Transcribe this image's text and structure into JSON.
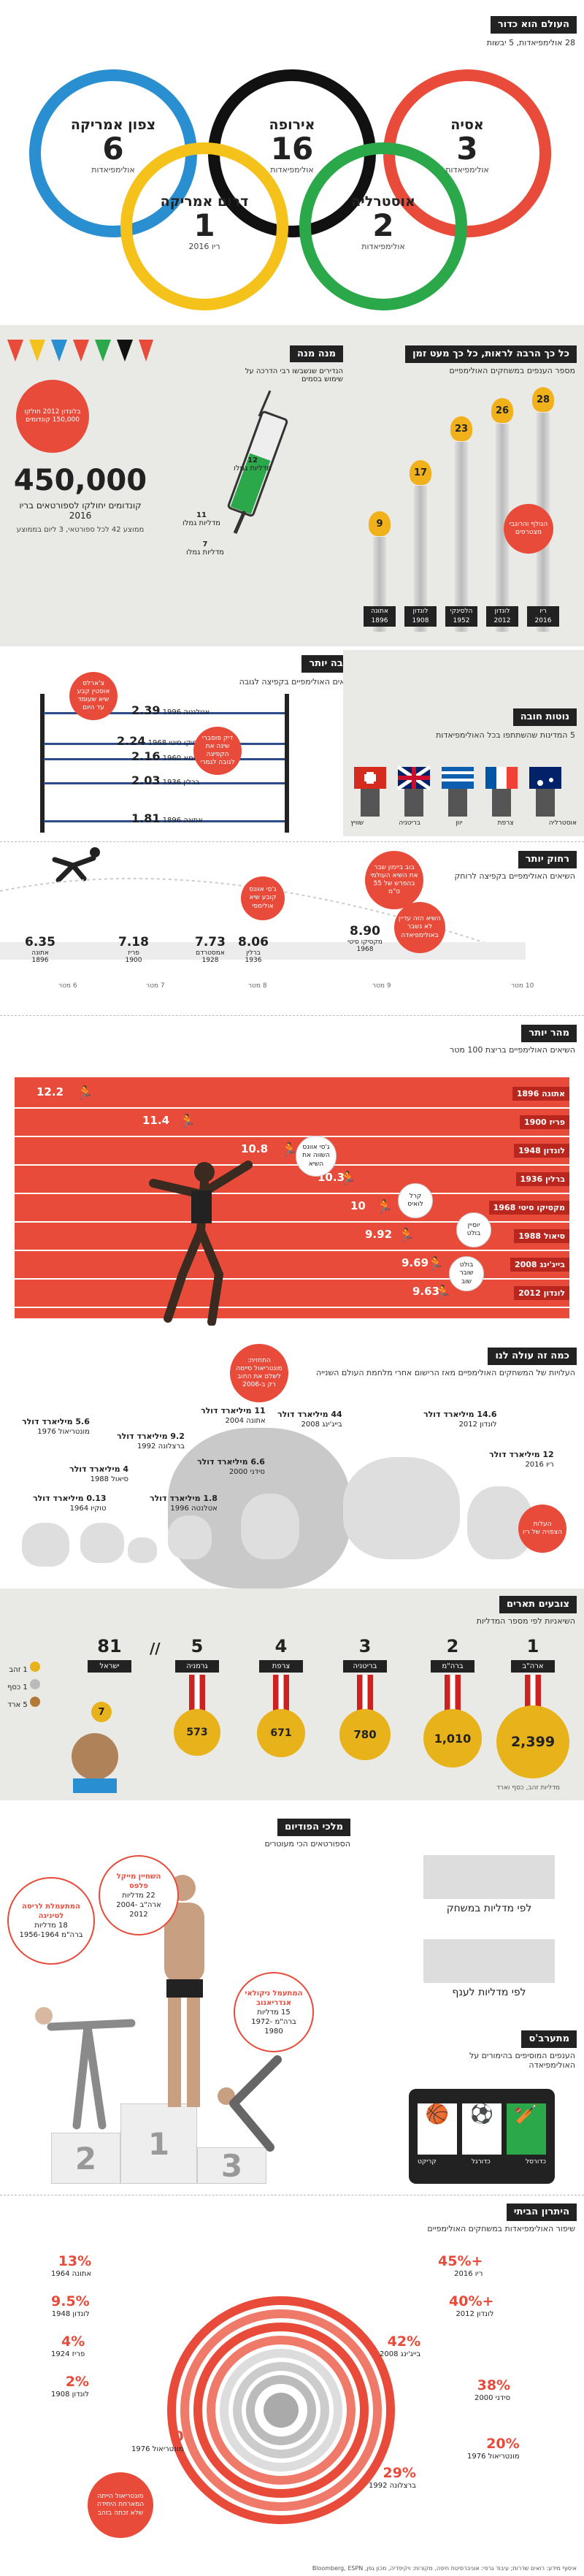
{
  "sec1": {
    "title": "העולם הוא כדור",
    "subtitle": "28 אולימפיאדות, 5 יבשות",
    "rings": [
      {
        "name": "צפון אמריקה",
        "num": "6",
        "unit": "אולימפיאדות",
        "note": "",
        "color": "#2a8fd0"
      },
      {
        "name": "אירופה",
        "num": "16",
        "unit": "אולימפיאדות",
        "note": "",
        "color": "#111111"
      },
      {
        "name": "אסיה",
        "num": "3",
        "unit": "אולימפיאדות",
        "note": "",
        "color": "#e84b3a"
      },
      {
        "name": "דרום אמריקה",
        "num": "1",
        "unit": "",
        "note": "ריו 2016",
        "color": "#f4c21a"
      },
      {
        "name": "אוסטרליה",
        "num": "2",
        "unit": "אולימפיאדות",
        "note": "",
        "color": "#2aa84a"
      }
    ]
  },
  "sec2": {
    "title": "כל כך הרבה לראות, כל כך מעט זמן",
    "subtitle": "מספר הענפים במשחקים האולימפיים",
    "torches": [
      {
        "value": "9",
        "city": "אתונה",
        "year": "1896"
      },
      {
        "value": "17",
        "city": "לונדון",
        "year": "1908"
      },
      {
        "value": "23",
        "city": "הלסינקי",
        "year": "1952"
      },
      {
        "value": "26",
        "city": "לונדון",
        "year": "2012"
      },
      {
        "value": "28",
        "city": "ריו",
        "year": "2016"
      }
    ],
    "bubble": "הגולף והרוגבי מצטרפים",
    "dose_title": "מנה מנה",
    "dose_sub": "הנדירים שנשבשו רבי הדרכה על שימוש בסמים",
    "dose_vals": [
      {
        "v": "12",
        "label": "מדליות גמלו"
      },
      {
        "v": "11",
        "label": "מדליות גמלו"
      },
      {
        "v": "7",
        "label": "מדליות גמלו"
      }
    ],
    "condoms_num": "450,000",
    "condoms_label": "קונדומים יחולקו לספורטאים בריו 2016",
    "condoms_note": "ממוצע 42 לכל ספורטאי, 3 ליום בממוצע",
    "condoms_bubble": "בלונדון 2012 חולקו 150,000 קונדומים"
  },
  "sec3": {
    "title": "גובה יותר",
    "subtitle": "השיאים האולימפיים בקפיצה לגובה",
    "bars": [
      {
        "value": "2.39",
        "label": "אטלנטה 1996"
      },
      {
        "value": "2.24",
        "label": "מקסיקו סיטי 1968"
      },
      {
        "value": "2.16",
        "label": "רומא 1960"
      },
      {
        "value": "2.03",
        "label": "ברלין 1936"
      },
      {
        "value": "1.81",
        "label": "אתונה 1896"
      }
    ],
    "bubble1": "צ'ארלס אוסטין קבע שיא שעומד עד היום",
    "bubble2": "דיק פוסברי שינה את הקפיצה לגובה לגמרי"
  },
  "sec4": {
    "title": "נוטות חובה",
    "subtitle": "5 המדינות שהשתתפו בכל האולימפיאדות",
    "countries": [
      "שוויץ",
      "בריטניה",
      "יוון",
      "צרפת",
      "אוסטרליה"
    ]
  },
  "sec5": {
    "title": "רחוק יותר",
    "subtitle": "השיאים האולימפיים בקפיצה לרוחק",
    "marks": [
      {
        "value": "6.35",
        "city": "אתונה",
        "year": "1896"
      },
      {
        "value": "7.18",
        "city": "פריז",
        "year": "1900"
      },
      {
        "value": "7.73",
        "city": "אמסטרדם",
        "year": "1928"
      },
      {
        "value": "8.06",
        "city": "ברלין",
        "year": "1936"
      },
      {
        "value": "8.90",
        "city": "מקסיקו סיטי",
        "year": "1968"
      }
    ],
    "meters": [
      "7 מטר",
      "6 מטר",
      "8 מטר",
      "9 מטר",
      "10 מטר"
    ],
    "bubble1": "ג'סי אוונס קובע שיא אולימפי",
    "bubble2": "בוב ביימון שבר את השיא העולמי בהפרש של 55 ס\"מ",
    "bubble3": "השיא הזה עדיין לא נשבר באולימפיאדה"
  },
  "sec6": {
    "title": "מהר יותר",
    "subtitle": "השיאים האולימפיים בריצת 100 מטר",
    "lanes": [
      {
        "tag": "אתונה 1896",
        "time": "12.2"
      },
      {
        "tag": "פריז 1900",
        "time": "11.4"
      },
      {
        "tag": "לונדון 1948",
        "time": "10.8"
      },
      {
        "tag": "ברלין 1936",
        "time": "10.3"
      },
      {
        "tag": "מקסיקו סיטי 1968",
        "time": "10"
      },
      {
        "tag": "סיאול 1988",
        "time": "9.92"
      },
      {
        "tag": "בייג'ינג 2008",
        "time": "9.69"
      },
      {
        "tag": "לונדון 2012",
        "time": "9.63"
      }
    ],
    "callouts": [
      "ג'סי אוונס השווה את השיא",
      "קרל לואיס",
      "יוסיין בולט",
      "בולט שובר שוב"
    ]
  },
  "sec7": {
    "title": "כמה זה עולה לנו",
    "subtitle": "העלויות של המשחקים האולימפיים מאז הרישום אחרי מלחמת העולם השנייה",
    "costs": [
      {
        "amount": "14.6 מיליארד דולר",
        "place": "לונדון 2012"
      },
      {
        "amount": "44 מיליארד דולר",
        "place": "בייג'ינג 2008"
      },
      {
        "amount": "11 מיליארד דולר",
        "place": "אתונה 2004"
      },
      {
        "amount": "6.6 מיליארד דולר",
        "place": "סידני 2000"
      },
      {
        "amount": "1.8 מיליארד דולר",
        "place": "אטלנטה 1996"
      },
      {
        "amount": "9.2 מיליארד דולר",
        "place": "ברצלונה 1992"
      },
      {
        "amount": "4 מיליארד דולר",
        "place": "סיאול 1988"
      },
      {
        "amount": "5.6 מיליארד דולר",
        "place": "מונטריאול 1976"
      },
      {
        "amount": "0.13 מיליארד דולר",
        "place": "טוקיו 1964"
      },
      {
        "amount": "12 מיליארד דולר",
        "place": "ריו 2016"
      }
    ],
    "bubble1": "התחזית: מונטריאול סיימה לשלם את החוב רק ב-2006",
    "bubble2": "העלות הצפויה של ריו"
  },
  "sec8": {
    "title": "צובעים תארים",
    "subtitle": "השיאניות לפי מספר המדליות",
    "ranks": [
      {
        "rank": "1",
        "country": "ארה\"ב",
        "medals": "2,399"
      },
      {
        "rank": "2",
        "country": "ברה\"מ",
        "medals": "1,010"
      },
      {
        "rank": "3",
        "country": "בריטניה",
        "medals": "780"
      },
      {
        "rank": "4",
        "country": "צרפת",
        "medals": "671"
      },
      {
        "rank": "5",
        "country": "גרמניה",
        "medals": "573"
      },
      {
        "rank": "81",
        "country": "ישראל",
        "medals": "7"
      }
    ],
    "medal_note": "מדליות זהב, כסף וארד",
    "israel": [
      "1 זהב",
      "1 כסף",
      "5 ארד"
    ]
  },
  "sec9": {
    "title": "מלכי הפודיום",
    "subtitle": "הספורטאים הכי מעוטרים",
    "c1": {
      "title": "המתעמלת לריסה לטינינה",
      "detail": "18 מדליות",
      "note": "ברה\"מ 1956-1964"
    },
    "c2": {
      "title": "השחיין מייקל פלפס",
      "detail": "22 מדליות",
      "note": "ארה\"ב 2004-2012"
    },
    "c3": {
      "title": "המתעמל ניקולאי אנדריאנוב",
      "detail": "15 מדליות",
      "note": "ברה\"מ 1972-1980"
    },
    "podium_nums": [
      "2",
      "1",
      "3"
    ],
    "pod_labels": [
      "לפי מדליות במשחק",
      "לפי מדליות לענף"
    ]
  },
  "sec10": {
    "title": "מתערב'ס",
    "subtitle": "הענפים המוסיפים בהימורים על האולימפיאדה",
    "slots": [
      "קריקט",
      "כדורגל",
      "כדורסל"
    ]
  },
  "sec11": {
    "title": "היתרון הביתי",
    "subtitle": "שיפור האולימפיאדות במשחקים האולימפיים",
    "right": [
      {
        "pct": "+45%",
        "city": "ריו",
        "year": "2016"
      },
      {
        "pct": "+40%",
        "city": "לונדון",
        "year": "2012"
      },
      {
        "pct": "42%",
        "city": "בייג'ינג",
        "year": "2008"
      },
      {
        "pct": "38%",
        "city": "סידני",
        "year": "2000"
      },
      {
        "pct": "20%",
        "city": "מונטריאול",
        "year": "1976"
      },
      {
        "pct": "29%",
        "city": "ברצלונה",
        "year": "1992"
      }
    ],
    "left": [
      {
        "pct": "13%",
        "city": "אתונה",
        "year": "1964"
      },
      {
        "pct": "9.5%",
        "city": "לונדון",
        "year": "1948"
      },
      {
        "pct": "4%",
        "city": "פריז",
        "year": "1924"
      },
      {
        "pct": "2%",
        "city": "לונדון",
        "year": "1908"
      },
      {
        "pct": "0",
        "city": "מונטריאול",
        "year": "1976"
      }
    ],
    "bubble": "מונטריאול הייתה המארחת היחידה שלא זכתה בזהב"
  },
  "footer": "איסוף מידע: רואים שדרות; עיבוד גרפי: אוניברסיטת חיפה, מקורות: ויקיפדיה, מכון גפן, Bloomberg, ESPN"
}
